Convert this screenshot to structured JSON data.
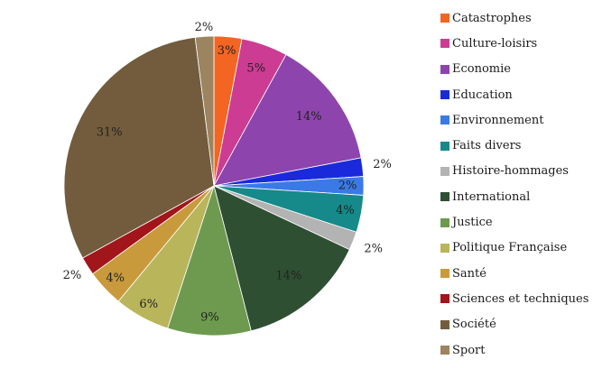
{
  "chart_data": {
    "type": "pie",
    "title": "",
    "legend_position": "right",
    "categories": [
      "Catastrophes",
      "Culture-loisirs",
      "Economie",
      "Education",
      "Environnement",
      "Faits divers",
      "Histoire-hommages",
      "International",
      "Justice",
      "Politique Française",
      "Santé",
      "Sciences et techniques",
      "Société",
      "Sport"
    ],
    "values": [
      3,
      5,
      14,
      2,
      2,
      4,
      2,
      14,
      9,
      6,
      4,
      2,
      31,
      2
    ],
    "data_labels": [
      "3%",
      "5%",
      "14%",
      "2%",
      "2%",
      "4%",
      "2%",
      "14%",
      "9%",
      "6%",
      "4%",
      "2%",
      "31%",
      "2%"
    ],
    "colors": [
      "#f26522",
      "#cc3c92",
      "#8e44ad",
      "#1a2adb",
      "#3b7ae6",
      "#16898a",
      "#b3b3b3",
      "#2f4f33",
      "#6e9a4f",
      "#b9b55b",
      "#c99a3c",
      "#a1151b",
      "#725c3d",
      "#9c8460"
    ],
    "unit": "%"
  }
}
